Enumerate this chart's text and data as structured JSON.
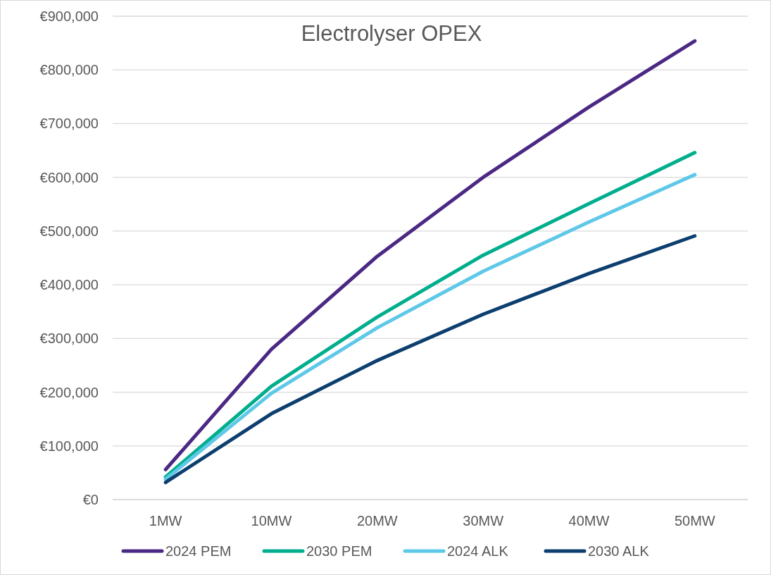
{
  "chart_data": {
    "type": "line",
    "title": "Electrolyser OPEX",
    "categories": [
      "1MW",
      "10MW",
      "20MW",
      "30MW",
      "40MW",
      "50MW"
    ],
    "series": [
      {
        "name": "2024 PEM",
        "color": "#4b2884",
        "values": [
          56000,
          280000,
          453000,
          600000,
          731000,
          854000
        ]
      },
      {
        "name": "2030 PEM",
        "color": "#00ae8d",
        "values": [
          42000,
          211000,
          340000,
          455000,
          551000,
          646000
        ]
      },
      {
        "name": "2024 ALK",
        "color": "#5ec8e8",
        "values": [
          38000,
          198000,
          320000,
          425000,
          517000,
          605000
        ]
      },
      {
        "name": "2030 ALK",
        "color": "#0c3f6f",
        "values": [
          32000,
          160000,
          259000,
          345000,
          421000,
          491000
        ]
      }
    ],
    "ylim": [
      0,
      900000
    ],
    "yticks": [
      {
        "value": 0,
        "label": "€0"
      },
      {
        "value": 100000,
        "label": "€100,000"
      },
      {
        "value": 200000,
        "label": "€200,000"
      },
      {
        "value": 300000,
        "label": "€300,000"
      },
      {
        "value": 400000,
        "label": "€400,000"
      },
      {
        "value": 500000,
        "label": "€500,000"
      },
      {
        "value": 600000,
        "label": "€600,000"
      },
      {
        "value": 700000,
        "label": "€700,000"
      },
      {
        "value": 800000,
        "label": "€800,000"
      },
      {
        "value": 900000,
        "label": "€900,000"
      }
    ],
    "grid": "y",
    "legend": "bottom",
    "marker": "none",
    "line_style": "solid"
  }
}
